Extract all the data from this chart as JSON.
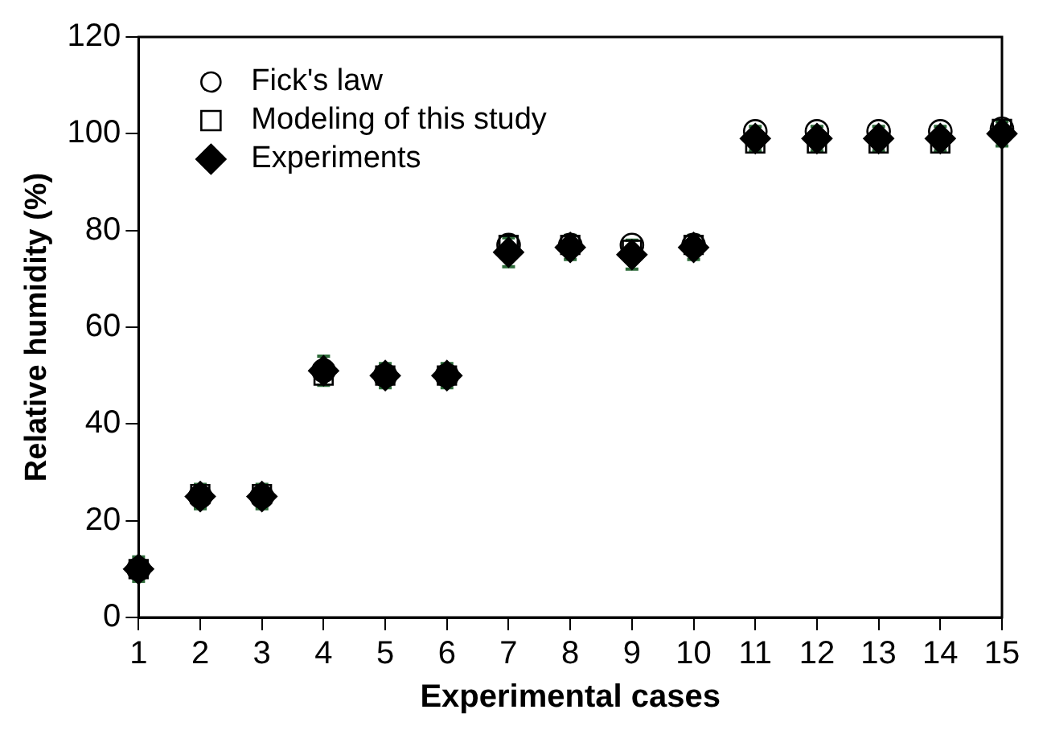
{
  "chart_data": {
    "type": "scatter",
    "xlabel": "Experimental cases",
    "ylabel": "Relative humidity (%)",
    "x": [
      1,
      2,
      3,
      4,
      5,
      6,
      7,
      8,
      9,
      10,
      11,
      12,
      13,
      14,
      15
    ],
    "xlim": [
      1,
      15
    ],
    "xticks": [
      1,
      2,
      3,
      4,
      5,
      6,
      7,
      8,
      9,
      10,
      11,
      12,
      13,
      14,
      15
    ],
    "ylim": [
      0,
      120
    ],
    "yticks": [
      0,
      20,
      40,
      60,
      80,
      100,
      120
    ],
    "grid": false,
    "legend": "top left",
    "series": [
      {
        "name": "Fick's law",
        "color": "#000000",
        "marker": "circle",
        "values": [
          10,
          25,
          25,
          51,
          50,
          50,
          77,
          77,
          77,
          77,
          100.5,
          100.5,
          100.5,
          100.5,
          101
        ]
      },
      {
        "name": "Modeling of this study",
        "color": "#000000",
        "marker": "square",
        "values": [
          10,
          25.5,
          25.5,
          50,
          50,
          50,
          77,
          77,
          76,
          77,
          98,
          98,
          98,
          98,
          101
        ]
      },
      {
        "name": "Experiments",
        "color": "#000000",
        "marker": "diamond",
        "values": [
          10,
          25,
          25,
          51,
          50,
          50,
          75.5,
          76.5,
          75,
          76.5,
          99,
          99,
          99,
          99,
          100
        ],
        "errors": [
          2.5,
          2.5,
          2.5,
          3,
          2.5,
          2.5,
          3,
          2.5,
          3,
          2.5,
          2.5,
          2.5,
          2.5,
          2.5,
          2.5
        ]
      }
    ]
  }
}
